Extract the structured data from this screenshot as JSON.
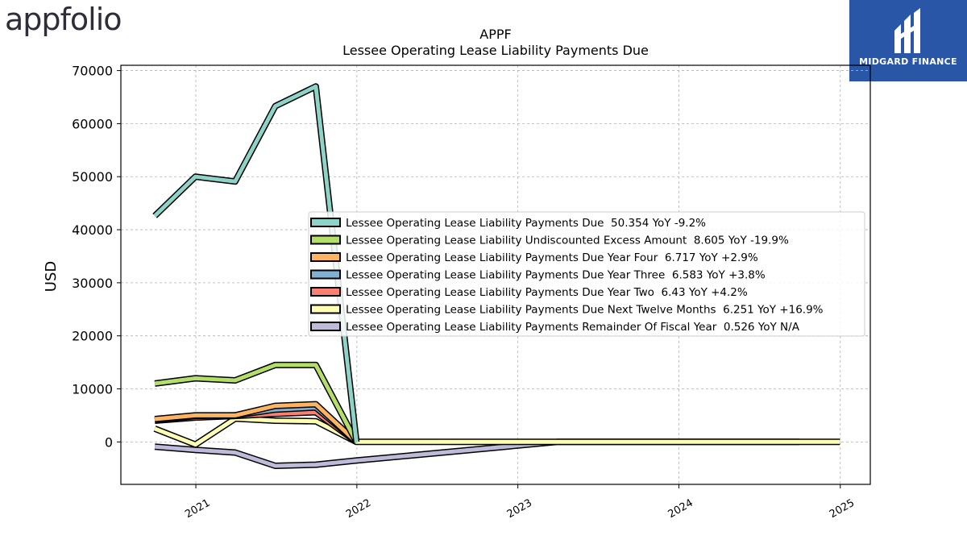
{
  "logos": {
    "left": "appfolio",
    "right": "MIDGARD FINANCE"
  },
  "colors": {
    "payments_due": "#8dd3c7",
    "undiscounted_excess": "#b3de69",
    "year_four": "#fdb462",
    "year_three": "#80b1d3",
    "year_two": "#fb8072",
    "next_twelve": "#ffffb3",
    "remainder": "#bebada",
    "outline": "#000000",
    "grid": "#b0b0b0"
  },
  "chart_data": {
    "type": "line",
    "title": "APPF",
    "subtitle": "Lessee Operating Lease Liability Payments Due",
    "ylabel": "USD",
    "xlabel": "",
    "ylim": [
      -8000,
      71000
    ],
    "xlim": [
      "2020-07-15",
      "2025-03-10"
    ],
    "yticks": [
      0,
      10000,
      20000,
      30000,
      40000,
      50000,
      60000,
      70000
    ],
    "xticks": [
      "2021",
      "2022",
      "2023",
      "2024",
      "2025"
    ],
    "grid": true,
    "legend_position": "center-right",
    "series": [
      {
        "name": "Lessee Operating Lease Liability Payments Due  50.354 YoY -9.2%",
        "color_key": "payments_due",
        "points": [
          [
            "2020-09-30",
            42600
          ],
          [
            "2020-12-31",
            50000
          ],
          [
            "2021-03-31",
            49100
          ],
          [
            "2021-06-30",
            63300
          ],
          [
            "2021-09-30",
            67000
          ],
          [
            "2021-12-31",
            0
          ]
        ]
      },
      {
        "name": "Lessee Operating Lease Liability Undiscounted Excess Amount  8.605 YoY -19.9%",
        "color_key": "undiscounted_excess",
        "points": [
          [
            "2020-09-30",
            11000
          ],
          [
            "2020-12-31",
            12000
          ],
          [
            "2021-03-31",
            11600
          ],
          [
            "2021-06-30",
            14500
          ],
          [
            "2021-09-30",
            14500
          ],
          [
            "2021-12-31",
            0
          ]
        ]
      },
      {
        "name": "Lessee Operating Lease Liability Payments Due Year Four  6.717 YoY +2.9%",
        "color_key": "year_four",
        "points": [
          [
            "2020-09-30",
            4300
          ],
          [
            "2020-12-31",
            5000
          ],
          [
            "2021-03-31",
            5000
          ],
          [
            "2021-06-30",
            6800
          ],
          [
            "2021-09-30",
            7100
          ],
          [
            "2021-12-31",
            0
          ]
        ]
      },
      {
        "name": "Lessee Operating Lease Liability Payments Due Year Three  6.583 YoY +3.8%",
        "color_key": "year_three",
        "points": [
          [
            "2020-09-30",
            4100
          ],
          [
            "2020-12-31",
            4900
          ],
          [
            "2021-03-31",
            5000
          ],
          [
            "2021-06-30",
            6100
          ],
          [
            "2021-09-30",
            6500
          ],
          [
            "2021-12-31",
            0
          ]
        ]
      },
      {
        "name": "Lessee Operating Lease Liability Payments Due Year Two  6.43 YoY +4.2%",
        "color_key": "year_two",
        "points": [
          [
            "2020-09-30",
            4000
          ],
          [
            "2020-12-31",
            4600
          ],
          [
            "2021-03-31",
            4900
          ],
          [
            "2021-06-30",
            5300
          ],
          [
            "2021-09-30",
            5600
          ],
          [
            "2021-12-31",
            0
          ]
        ]
      },
      {
        "name": "Lessee Operating Lease Liability Payments Due Next Twelve Months  6.251 YoY +16.9%",
        "color_key": "next_twelve",
        "points": [
          [
            "2020-09-30",
            2500
          ],
          [
            "2020-12-31",
            -500
          ],
          [
            "2021-03-31",
            4400
          ],
          [
            "2021-06-30",
            4000
          ],
          [
            "2021-09-30",
            3900
          ],
          [
            "2021-12-31",
            0
          ],
          [
            "2024-09-30",
            0
          ],
          [
            "2024-12-31",
            0
          ]
        ]
      },
      {
        "name": "Lessee Operating Lease Liability Payments Remainder Of Fiscal Year  0.526 YoY N/A",
        "color_key": "remainder",
        "points": [
          [
            "2020-09-30",
            -900
          ],
          [
            "2020-12-31",
            -1500
          ],
          [
            "2021-03-31",
            -2000
          ],
          [
            "2021-06-30",
            -4500
          ],
          [
            "2021-09-30",
            -4300
          ],
          [
            "2021-12-31",
            -3500
          ],
          [
            "2023-03-31",
            0
          ],
          [
            "2024-09-30",
            0
          ]
        ]
      }
    ]
  }
}
